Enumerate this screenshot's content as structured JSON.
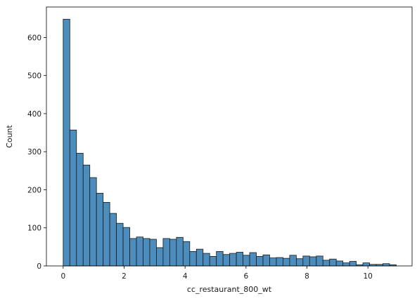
{
  "chart_data": {
    "type": "bar",
    "subtype": "histogram",
    "xlabel": "cc_restaurant_800_wt",
    "ylabel": "Count",
    "xlim": [
      -0.55,
      11.45
    ],
    "ylim": [
      0,
      680
    ],
    "xticks": [
      0,
      2,
      4,
      6,
      8,
      10
    ],
    "yticks": [
      0,
      100,
      200,
      300,
      400,
      500,
      600
    ],
    "grid": false,
    "bin_start": 0,
    "bin_width": 0.2186,
    "values": [
      648,
      357,
      296,
      265,
      232,
      191,
      167,
      138,
      112,
      101,
      72,
      76,
      72,
      70,
      48,
      72,
      70,
      75,
      64,
      38,
      44,
      33,
      25,
      38,
      30,
      33,
      36,
      28,
      35,
      25,
      29,
      21,
      22,
      20,
      28,
      19,
      26,
      24,
      26,
      15,
      18,
      13,
      8,
      12,
      3,
      8,
      4,
      4,
      6,
      3
    ],
    "bar_color": "#4c8dbd"
  }
}
